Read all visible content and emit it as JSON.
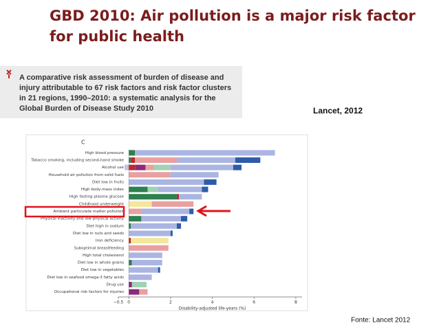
{
  "slide": {
    "title_lines": [
      "GBD 2010: Air pollution is a major risk factor",
      "for public health"
    ],
    "paper_title_lines": [
      "A comparative risk assessment of burden of disease and",
      "injury attributable to 67 risk factors and risk factor clusters",
      "in 21 regions, 1990–2010: a systematic analysis for the",
      "Global Burden of Disease Study 2010"
    ],
    "citation": "Lancet, 2012",
    "source": "Fonte: Lancet 2012"
  },
  "chart_data": {
    "type": "stacked-barh",
    "panel_label": "C",
    "x_label": "Disability-adjusted life-years (%)",
    "categories": [
      "High blood pressure",
      "Tobacco smoking, including second-hand smoke",
      "Alcohol use",
      "Household air pollution from solid fuels",
      "Diet low in fruits",
      "High body-mass index",
      "High fasting plasma glucose",
      "Childhood underweight",
      "Ambient particulate matter pollution",
      "Physical inactivity and low physical activity",
      "Diet high in sodium",
      "Diet low in nuts and seeds",
      "Iron deficiency",
      "Suboptimal breastfeeding",
      "High total cholesterol",
      "Diet low in whole grains",
      "Diet low in vegetables",
      "Diet low in seafood omega-3 fatty acids",
      "Drug use",
      "Occupational risk factors for injuries"
    ],
    "series": [
      {
        "color": "#2f7f4f",
        "values": [
          0.3,
          0.1,
          0,
          0,
          0,
          0.9,
          2.3,
          0,
          0,
          0.6,
          0.1,
          0,
          0,
          0,
          0,
          0.15,
          0,
          0,
          0,
          0
        ]
      },
      {
        "color": "#c0282c",
        "values": [
          0,
          0.2,
          0.3,
          0,
          0,
          0,
          0.1,
          0,
          0,
          0,
          0,
          0,
          0.1,
          0,
          0,
          0,
          0,
          0,
          0,
          0
        ]
      },
      {
        "color": "#8b2a7a",
        "values": [
          0,
          0,
          0.5,
          0,
          0,
          0,
          0,
          0,
          0,
          0,
          0,
          0,
          0,
          0,
          0,
          0,
          0,
          0,
          0.15,
          0.5
        ]
      },
      {
        "color": "#f5e79a",
        "values": [
          0,
          0,
          0,
          0,
          0,
          0,
          0,
          1.1,
          0,
          0,
          0,
          0,
          1.8,
          0,
          0,
          0,
          0,
          0,
          0,
          0
        ]
      },
      {
        "color": "#e9a0a0",
        "values": [
          0,
          2.0,
          0.4,
          2.0,
          0,
          0,
          0,
          2.0,
          0.6,
          0,
          0,
          0,
          0,
          1.9,
          0,
          0,
          0,
          0,
          0,
          0.4
        ]
      },
      {
        "color": "#9fd3b4",
        "values": [
          0,
          0,
          0.8,
          0,
          0,
          0.5,
          0,
          0,
          0,
          0,
          0,
          0,
          0,
          0,
          0,
          0,
          0,
          0,
          0.7,
          0
        ]
      },
      {
        "color": "#aab5e2",
        "values": [
          6.7,
          2.8,
          3.0,
          2.3,
          3.6,
          2.1,
          1.1,
          0,
          2.3,
          1.9,
          2.2,
          2.0,
          0,
          0,
          1.6,
          1.45,
          1.4,
          1.1,
          0,
          0
        ]
      },
      {
        "color": "#2f5ca8",
        "values": [
          0,
          1.2,
          0.4,
          0,
          0.6,
          0.3,
          0,
          0,
          0.2,
          0.3,
          0.2,
          0.1,
          0,
          0,
          0,
          0,
          0.1,
          0,
          0,
          0
        ]
      },
      {
        "color": "#c6c0dc",
        "values": [
          0,
          0,
          -0.2,
          0,
          0,
          0,
          0,
          0,
          0,
          0,
          0,
          0,
          0,
          0,
          0,
          0,
          0,
          0,
          0,
          0
        ]
      }
    ],
    "xlim": [
      -0.5,
      8.3
    ],
    "xticks": [
      {
        "value": -0.5,
        "label": "−0.5"
      },
      0,
      2,
      4,
      6,
      8
    ]
  }
}
